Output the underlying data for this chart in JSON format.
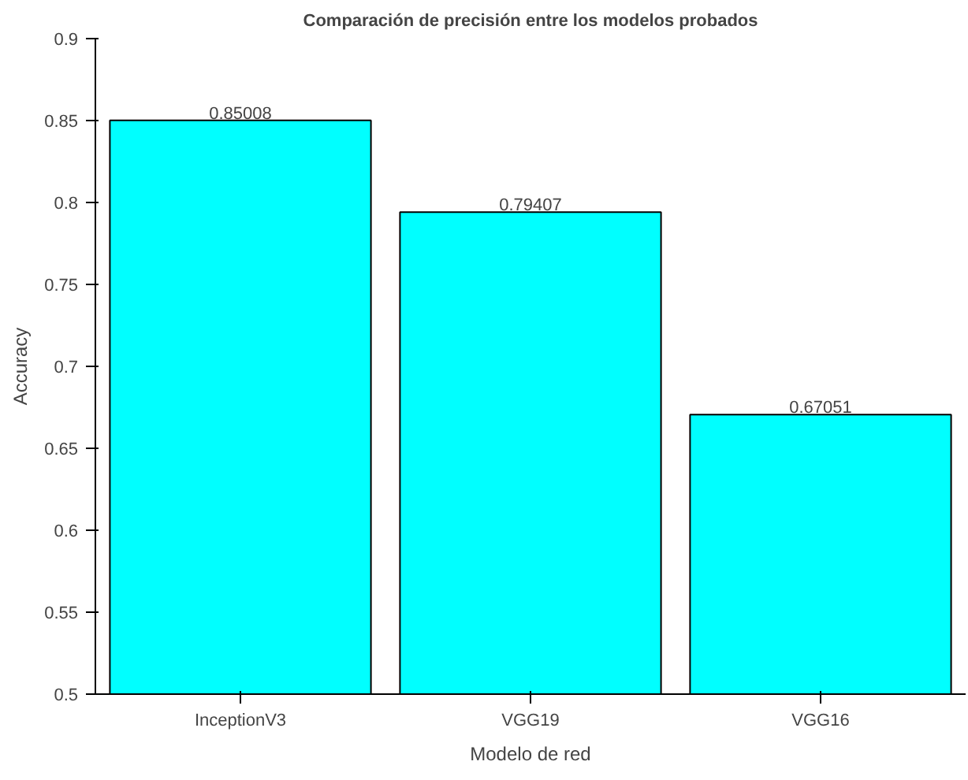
{
  "chart_data": {
    "type": "bar",
    "title": "Comparación de precisión entre los modelos probados",
    "xlabel": "Modelo de red",
    "ylabel": "Accuracy",
    "categories": [
      "InceptionV3",
      "VGG19",
      "VGG16"
    ],
    "values": [
      0.85008,
      0.79407,
      0.67051
    ],
    "color": "#00ffff",
    "ylim": [
      0.5,
      0.9
    ],
    "yticks": [
      0.5,
      0.55,
      0.6,
      0.65,
      0.7,
      0.75,
      0.8,
      0.85,
      0.9
    ],
    "data_labels": true,
    "grid": false
  }
}
